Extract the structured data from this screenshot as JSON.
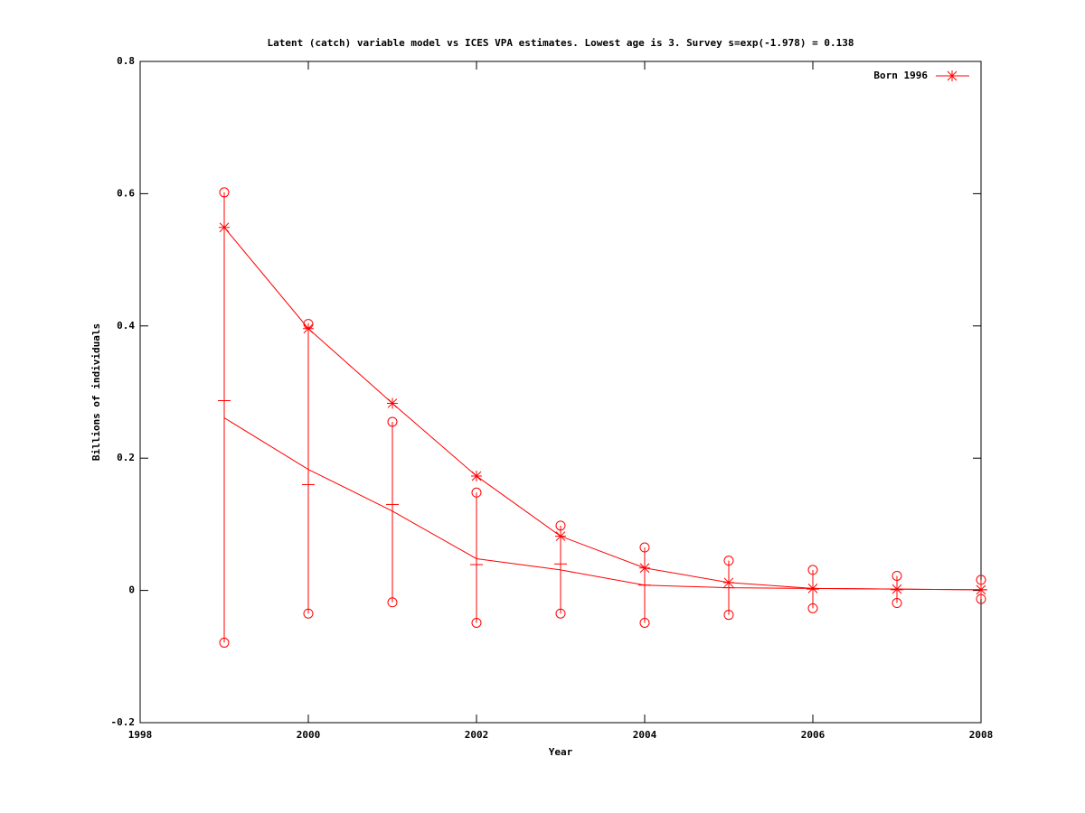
{
  "chart_data": {
    "type": "line",
    "title": "Latent (catch) variable model vs ICES VPA estimates. Lowest age is 3. Survey s=exp(-1.978) = 0.138",
    "x_label": "Year",
    "y_label": "Billions of individuals",
    "x": [
      1999,
      2000,
      2001,
      2002,
      2003,
      2004,
      2005,
      2006,
      2007,
      2008
    ],
    "series": [
      {
        "name": "Born 1996",
        "color": "#ff0000",
        "marker": "asterisk",
        "values": [
          0.549,
          0.396,
          0.283,
          0.173,
          0.082,
          0.034,
          0.012,
          0.003,
          0.002,
          0.001
        ]
      },
      {
        "color": "#ff0000",
        "marker": "errorbar",
        "values": [
          0.287,
          0.16,
          0.13,
          0.039,
          0.04,
          0.008,
          0.004,
          0.002,
          0.001,
          0.001
        ],
        "lower": [
          -0.079,
          -0.035,
          -0.018,
          -0.049,
          -0.035,
          -0.049,
          -0.037,
          -0.027,
          -0.019,
          -0.013
        ],
        "upper": [
          0.602,
          0.403,
          0.255,
          0.148,
          0.098,
          0.065,
          0.045,
          0.031,
          0.022,
          0.016
        ]
      },
      {
        "color": "#ff0000",
        "marker": "none",
        "values": [
          0.261,
          0.183,
          0.12,
          0.048,
          0.031,
          0.008,
          0.004,
          0.003,
          0.002,
          0.001
        ]
      }
    ],
    "xlim": [
      1998,
      2008
    ],
    "xticks": [
      1998,
      2000,
      2002,
      2004,
      2006,
      2008
    ],
    "ylim": [
      -0.2,
      0.8
    ],
    "yticks": [
      -0.2,
      0,
      0.2,
      0.4,
      0.6,
      0.8
    ],
    "legend": "top-right",
    "grid": false
  }
}
